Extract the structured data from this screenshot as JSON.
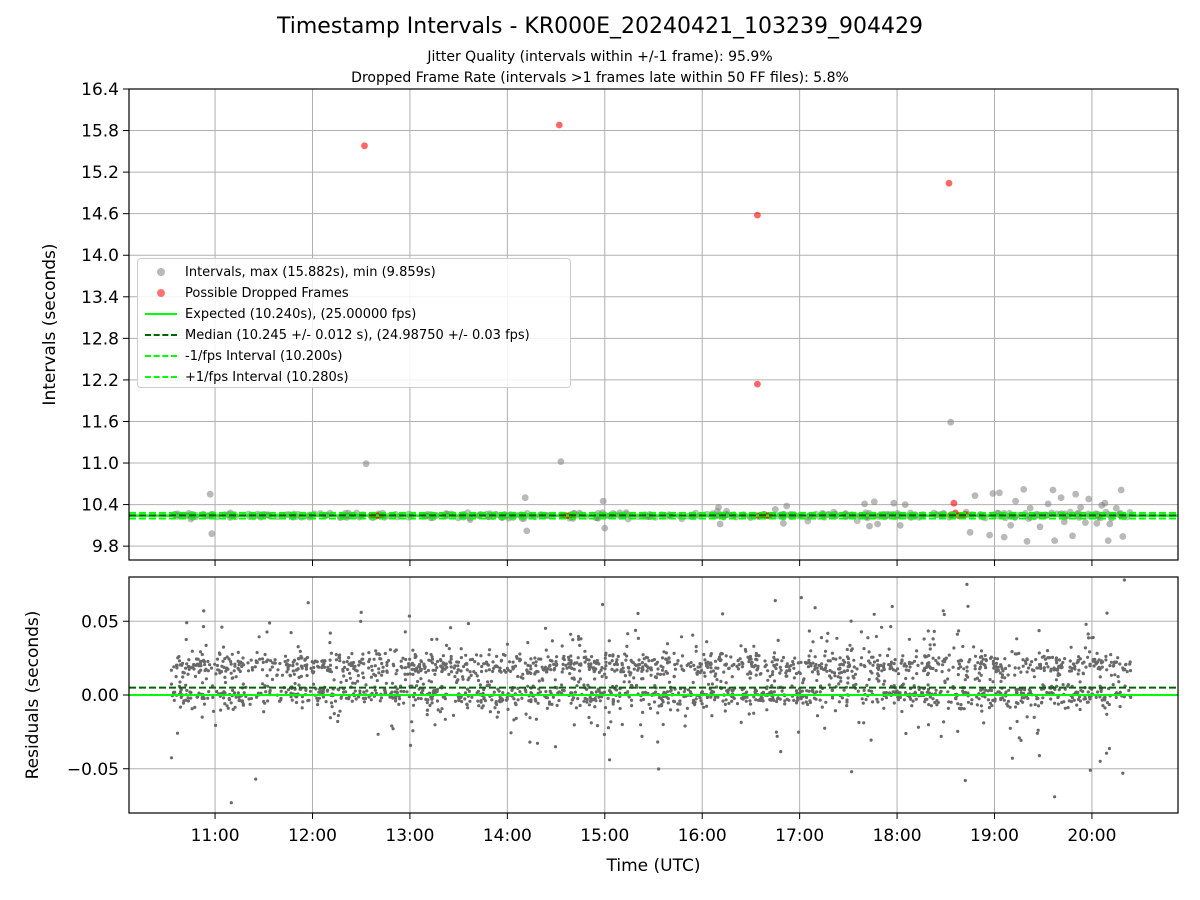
{
  "title": "Timestamp Intervals - KR000E_20240421_103239_904429",
  "subtitle_1": "Jitter Quality (intervals within +/-1 frame): 95.9%",
  "subtitle_2": "Dropped Frame Rate (intervals >1 frames late within 50 FF files): 5.8%",
  "colors": {
    "intervals": "#808080",
    "dropped": "#ff0000",
    "expected": "#00ff00",
    "median": "#006400",
    "bounds": "#00ff00",
    "grid": "#b0b0b0",
    "residuals": "#696969"
  },
  "legend": {
    "placement": "upper-left",
    "items": [
      {
        "label": "Intervals, max (15.882s), min (9.859s)",
        "kind": "marker",
        "color": "#808080"
      },
      {
        "label": "Possible Dropped Frames",
        "kind": "marker",
        "color": "#ff0000"
      },
      {
        "label": "Expected (10.240s), (25.00000 fps)",
        "kind": "line",
        "color": "#00ff00",
        "style": "solid"
      },
      {
        "label": "Median (10.245 +/- 0.012 s), (24.98750 +/- 0.03 fps)",
        "kind": "line",
        "color": "#006400",
        "style": "dashed"
      },
      {
        "label": "-1/fps Interval (10.200s)",
        "kind": "line",
        "color": "#00ff00",
        "style": "dashed"
      },
      {
        "label": "+1/fps Interval (10.280s)",
        "kind": "line",
        "color": "#00ff00",
        "style": "dashed"
      }
    ]
  },
  "chart_data": [
    {
      "type": "scatter",
      "title": "Timestamp Intervals - KR000E_20240421_103239_904429",
      "ylabel": "Intervals (seconds)",
      "xlabel": "",
      "xlim": [
        "10:07",
        "20:53"
      ],
      "ylim": [
        9.6,
        16.4
      ],
      "x_ticks": [
        "11:00",
        "12:00",
        "13:00",
        "14:00",
        "15:00",
        "16:00",
        "17:00",
        "18:00",
        "19:00",
        "20:00"
      ],
      "y_ticks": [
        "9.8",
        "10.4",
        "11.0",
        "11.6",
        "12.2",
        "12.8",
        "13.4",
        "14.0",
        "14.6",
        "15.2",
        "15.8",
        "16.4"
      ],
      "grid": true,
      "reference_lines": [
        {
          "name": "Expected",
          "y": 10.24,
          "style": "solid"
        },
        {
          "name": "Median",
          "y": 10.245,
          "style": "dashed"
        },
        {
          "name": "-1/fps Interval",
          "y": 10.2,
          "style": "dashed"
        },
        {
          "name": "+1/fps Interval",
          "y": 10.28,
          "style": "dashed"
        }
      ],
      "series": [
        {
          "name": "Intervals, max (15.882s), min (9.859s)",
          "points": [
            {
              "x": "10:57",
              "y": 10.55
            },
            {
              "x": "10:58",
              "y": 9.98
            },
            {
              "x": "12:33",
              "y": 10.99
            },
            {
              "x": "14:11",
              "y": 10.5
            },
            {
              "x": "14:12",
              "y": 10.02
            },
            {
              "x": "14:33",
              "y": 11.02
            },
            {
              "x": "14:59",
              "y": 10.45
            },
            {
              "x": "15:00",
              "y": 10.06
            },
            {
              "x": "16:10",
              "y": 10.36
            },
            {
              "x": "16:11",
              "y": 10.12
            },
            {
              "x": "16:45",
              "y": 10.33
            },
            {
              "x": "16:50",
              "y": 10.13
            },
            {
              "x": "16:52",
              "y": 10.38
            },
            {
              "x": "17:40",
              "y": 10.41
            },
            {
              "x": "17:43",
              "y": 10.09
            },
            {
              "x": "17:46",
              "y": 10.44
            },
            {
              "x": "17:48",
              "y": 10.12
            },
            {
              "x": "17:58",
              "y": 10.42
            },
            {
              "x": "18:02",
              "y": 10.1
            },
            {
              "x": "18:05",
              "y": 10.4
            },
            {
              "x": "18:33",
              "y": 11.59
            },
            {
              "x": "18:45",
              "y": 10.0
            },
            {
              "x": "18:48",
              "y": 10.53
            },
            {
              "x": "18:57",
              "y": 9.96
            },
            {
              "x": "18:59",
              "y": 10.56
            },
            {
              "x": "19:03",
              "y": 10.57
            },
            {
              "x": "19:06",
              "y": 9.93
            },
            {
              "x": "19:10",
              "y": 10.1
            },
            {
              "x": "19:13",
              "y": 10.45
            },
            {
              "x": "19:18",
              "y": 10.62
            },
            {
              "x": "19:20",
              "y": 9.87
            },
            {
              "x": "19:22",
              "y": 10.35
            },
            {
              "x": "19:28",
              "y": 10.08
            },
            {
              "x": "19:33",
              "y": 10.41
            },
            {
              "x": "19:36",
              "y": 10.61
            },
            {
              "x": "19:37",
              "y": 9.88
            },
            {
              "x": "19:41",
              "y": 10.5
            },
            {
              "x": "19:43",
              "y": 10.15
            },
            {
              "x": "19:48",
              "y": 9.95
            },
            {
              "x": "19:50",
              "y": 10.55
            },
            {
              "x": "19:53",
              "y": 10.36
            },
            {
              "x": "19:56",
              "y": 10.14
            },
            {
              "x": "19:58",
              "y": 10.48
            },
            {
              "x": "20:03",
              "y": 10.13
            },
            {
              "x": "20:06",
              "y": 10.39
            },
            {
              "x": "20:08",
              "y": 10.42
            },
            {
              "x": "20:10",
              "y": 9.88
            },
            {
              "x": "20:11",
              "y": 10.12
            },
            {
              "x": "20:12",
              "y": 10.2
            },
            {
              "x": "20:15",
              "y": 10.35
            },
            {
              "x": "20:18",
              "y": 10.61
            },
            {
              "x": "20:19",
              "y": 9.94
            }
          ],
          "bulk": {
            "x_range": [
              "10:33",
              "20:24"
            ],
            "y_center": 10.245,
            "y_spread": 0.04
          }
        },
        {
          "name": "Possible Dropped Frames",
          "points": [
            {
              "x": "12:32",
              "y": 15.58
            },
            {
              "x": "14:32",
              "y": 15.88
            },
            {
              "x": "16:34",
              "y": 14.58
            },
            {
              "x": "16:34",
              "y": 12.14
            },
            {
              "x": "18:32",
              "y": 15.04
            },
            {
              "x": "18:35",
              "y": 10.42
            },
            {
              "x": "12:36",
              "y": 10.24
            },
            {
              "x": "12:38",
              "y": 10.24
            },
            {
              "x": "12:40",
              "y": 10.24
            },
            {
              "x": "12:42",
              "y": 10.24
            },
            {
              "x": "14:34",
              "y": 10.24
            },
            {
              "x": "14:36",
              "y": 10.24
            },
            {
              "x": "14:38",
              "y": 10.24
            },
            {
              "x": "14:40",
              "y": 10.24
            },
            {
              "x": "16:35",
              "y": 10.24
            },
            {
              "x": "16:37",
              "y": 10.24
            },
            {
              "x": "16:39",
              "y": 10.24
            },
            {
              "x": "16:41",
              "y": 10.24
            },
            {
              "x": "18:33",
              "y": 10.25
            },
            {
              "x": "18:36",
              "y": 10.28
            },
            {
              "x": "18:38",
              "y": 10.24
            },
            {
              "x": "18:40",
              "y": 10.24
            },
            {
              "x": "18:42",
              "y": 10.26
            }
          ]
        }
      ]
    },
    {
      "type": "scatter",
      "title": "",
      "xlabel": "Time (UTC)",
      "ylabel": "Residuals (seconds)",
      "xlim": [
        "10:07",
        "20:53"
      ],
      "ylim": [
        -0.08,
        0.08
      ],
      "x_ticks": [
        "11:00",
        "12:00",
        "13:00",
        "14:00",
        "15:00",
        "16:00",
        "17:00",
        "18:00",
        "19:00",
        "20:00"
      ],
      "y_ticks": [
        "−0.05",
        "0.00",
        "0.05"
      ],
      "grid": true,
      "reference_lines": [
        {
          "name": "zero",
          "y": 0.0,
          "style": "solid"
        },
        {
          "name": "median offset",
          "y": 0.005,
          "style": "dashed"
        }
      ],
      "series": [
        {
          "name": "Residuals",
          "points": [
            {
              "x": "11:10",
              "y": -0.073
            },
            {
              "x": "20:20",
              "y": 0.078
            },
            {
              "x": "18:43",
              "y": 0.075
            },
            {
              "x": "17:01",
              "y": 0.066
            },
            {
              "x": "19:37",
              "y": -0.069
            },
            {
              "x": "10:53",
              "y": 0.057
            },
            {
              "x": "12:30",
              "y": 0.056
            },
            {
              "x": "16:45",
              "y": 0.064
            },
            {
              "x": "17:57",
              "y": 0.06
            },
            {
              "x": "20:19",
              "y": -0.053
            },
            {
              "x": "11:25",
              "y": -0.057
            },
            {
              "x": "18:42",
              "y": -0.058
            },
            {
              "x": "17:32",
              "y": -0.052
            },
            {
              "x": "19:59",
              "y": -0.051
            }
          ],
          "bulk": {
            "x_range": [
              "10:33",
              "20:24"
            ],
            "bands": [
              0.0,
              0.02
            ],
            "spread": 0.018
          }
        }
      ]
    }
  ]
}
